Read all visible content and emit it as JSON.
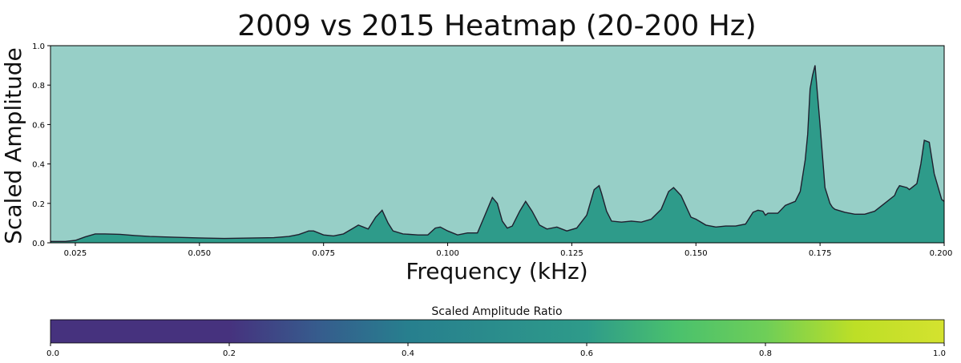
{
  "chart_data": [
    {
      "type": "area",
      "title": "2009 vs 2015 Heatmap (20-200 Hz)",
      "xlabel": "Frequency (kHz)",
      "ylabel": "Scaled Amplitude",
      "xlim": [
        0.02,
        0.2
      ],
      "ylim": [
        0,
        1
      ],
      "xticks": [
        "0.025",
        "0.050",
        "0.075",
        "0.100",
        "0.125",
        "0.150",
        "0.175",
        "0.200"
      ],
      "xtick_values": [
        0.025,
        0.05,
        0.075,
        0.1,
        0.125,
        0.15,
        0.175,
        0.2
      ],
      "yticks": [
        "0.0",
        "0.2",
        "0.4",
        "0.6",
        "0.8",
        "1.0"
      ],
      "ytick_values": [
        0,
        0.2,
        0.4,
        0.6,
        0.8,
        1.0
      ],
      "grid": false,
      "background_color": "#97cfc7",
      "fill_color": "#2e9b8a",
      "line_color": "#1f1f2e",
      "x": [
        0.02,
        0.023,
        0.025,
        0.027,
        0.029,
        0.031,
        0.034,
        0.037,
        0.04,
        0.045,
        0.05,
        0.055,
        0.06,
        0.065,
        0.068,
        0.07,
        0.072,
        0.073,
        0.075,
        0.077,
        0.079,
        0.081,
        0.082,
        0.083,
        0.084,
        0.0855,
        0.0868,
        0.088,
        0.089,
        0.091,
        0.094,
        0.096,
        0.0975,
        0.0985,
        0.1,
        0.102,
        0.104,
        0.106,
        0.1075,
        0.109,
        0.11,
        0.111,
        0.112,
        0.113,
        0.1145,
        0.1157,
        0.117,
        0.1185,
        0.12,
        0.122,
        0.123,
        0.124,
        0.126,
        0.128,
        0.1295,
        0.1305,
        0.131,
        0.132,
        0.133,
        0.135,
        0.137,
        0.139,
        0.141,
        0.143,
        0.1445,
        0.1455,
        0.147,
        0.149,
        0.15,
        0.152,
        0.154,
        0.156,
        0.158,
        0.16,
        0.1615,
        0.1625,
        0.1635,
        0.164,
        0.1645,
        0.1665,
        0.168,
        0.17,
        0.171,
        0.172,
        0.1725,
        0.173,
        0.1735,
        0.174,
        0.175,
        0.176,
        0.177,
        0.1775,
        0.178,
        0.18,
        0.182,
        0.184,
        0.186,
        0.188,
        0.19,
        0.1905,
        0.191,
        0.1925,
        0.193,
        0.1945,
        0.1953,
        0.196,
        0.197,
        0.198,
        0.1995,
        0.2
      ],
      "values": [
        0.007,
        0.007,
        0.012,
        0.03,
        0.045,
        0.045,
        0.043,
        0.037,
        0.032,
        0.028,
        0.025,
        0.022,
        0.024,
        0.026,
        0.032,
        0.042,
        0.06,
        0.06,
        0.04,
        0.035,
        0.045,
        0.075,
        0.09,
        0.08,
        0.07,
        0.13,
        0.165,
        0.1,
        0.06,
        0.045,
        0.04,
        0.04,
        0.075,
        0.08,
        0.06,
        0.04,
        0.05,
        0.05,
        0.14,
        0.23,
        0.2,
        0.11,
        0.075,
        0.085,
        0.16,
        0.21,
        0.16,
        0.09,
        0.07,
        0.08,
        0.07,
        0.06,
        0.075,
        0.14,
        0.27,
        0.29,
        0.25,
        0.16,
        0.11,
        0.105,
        0.11,
        0.105,
        0.12,
        0.17,
        0.26,
        0.28,
        0.24,
        0.13,
        0.12,
        0.09,
        0.08,
        0.085,
        0.085,
        0.095,
        0.155,
        0.165,
        0.16,
        0.14,
        0.15,
        0.15,
        0.19,
        0.21,
        0.26,
        0.42,
        0.55,
        0.78,
        0.85,
        0.9,
        0.6,
        0.28,
        0.2,
        0.18,
        0.17,
        0.155,
        0.145,
        0.145,
        0.16,
        0.2,
        0.24,
        0.27,
        0.29,
        0.28,
        0.27,
        0.3,
        0.4,
        0.52,
        0.51,
        0.35,
        0.22,
        0.21
      ]
    },
    {
      "type": "heatmap",
      "title": "Scaled Amplitude Ratio",
      "xlim": [
        0,
        1
      ],
      "xticks": [
        "0.0",
        "0.2",
        "0.4",
        "0.6",
        "0.8",
        "1.0"
      ],
      "xtick_values": [
        0,
        0.2,
        0.4,
        0.6,
        0.8,
        1.0
      ],
      "colormap_stops": [
        {
          "value": 0.0,
          "color": "#46327e"
        },
        {
          "value": 0.2,
          "color": "#46327e"
        },
        {
          "value": 0.3,
          "color": "#365c8d"
        },
        {
          "value": 0.4,
          "color": "#277f8e"
        },
        {
          "value": 0.6,
          "color": "#2e9b8a"
        },
        {
          "value": 0.7,
          "color": "#4ac16d"
        },
        {
          "value": 0.8,
          "color": "#6ece58"
        },
        {
          "value": 0.9,
          "color": "#bddf26"
        },
        {
          "value": 1.0,
          "color": "#d4e22f"
        }
      ]
    }
  ]
}
